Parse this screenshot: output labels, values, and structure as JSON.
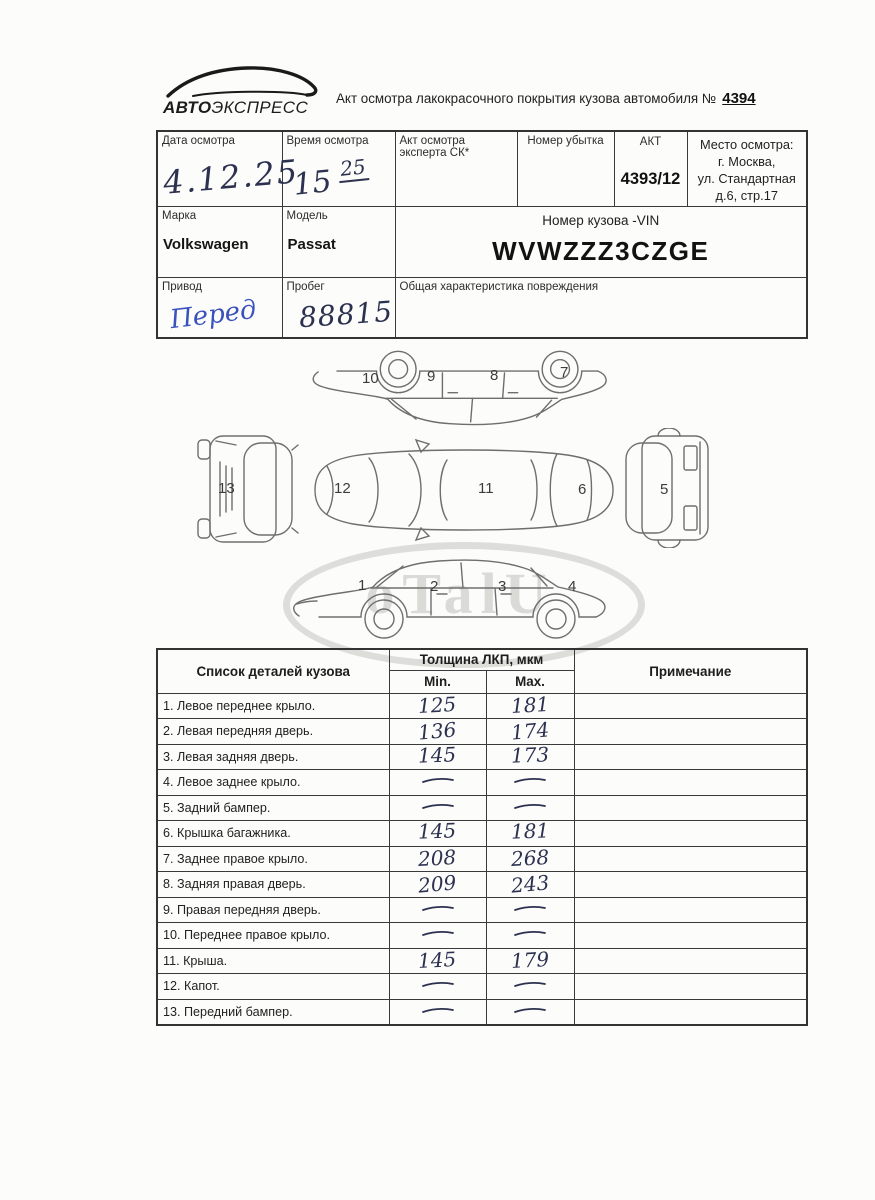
{
  "header": {
    "logo_bold": "АВТО",
    "logo_rest": "ЭКСПРЕСС",
    "title": "Акт осмотра лакокрасочного покрытия кузова автомобиля №",
    "act_number": "4394"
  },
  "info_table": {
    "date_label": "Дата осмотра",
    "date_value": "4.12.25",
    "time_label": "Время осмотра",
    "time_main": "15",
    "time_sup": "25",
    "expert_act_label": "Акт осмотра эксперта СК*",
    "loss_label": "Номер убытка",
    "akt_label": "АКТ",
    "akt_value": "4393/12",
    "place_label": "Место осмотра:",
    "place_line1": "г. Москва,",
    "place_line2": "ул. Стандартная",
    "place_line3": "д.6, стр.17",
    "brand_label": "Марка",
    "brand_value": "Volkswagen",
    "model_label": "Модель",
    "model_value": "Passat",
    "vin_label": "Номер кузова -VIN",
    "vin_value": "WVWZZZ3CZGE",
    "drive_label": "Привод",
    "drive_value": "Перед",
    "mileage_label": "Пробег",
    "mileage_value": "88815",
    "damage_label": "Общая характеристика повреждения"
  },
  "diagram": {
    "inverted_labels": [
      "10",
      "9",
      "8",
      "7"
    ],
    "front_label": "13",
    "plan_labels": [
      "12",
      "11",
      "6"
    ],
    "rear_label": "5",
    "side_labels": [
      "1",
      "2",
      "3",
      "4"
    ],
    "watermark_text": "oTalU"
  },
  "parts_table": {
    "col_parts": "Список деталей кузова",
    "col_thickness": "Толщина ЛКП, мкм",
    "col_min": "Min.",
    "col_max": "Max.",
    "col_note": "Примечание",
    "rows": [
      {
        "name": "1. Левое переднее крыло.",
        "min": "125",
        "max": "181",
        "note": ""
      },
      {
        "name": "2. Левая передняя дверь.",
        "min": "136",
        "max": "174",
        "note": ""
      },
      {
        "name": "3. Левая задняя дверь.",
        "min": "145",
        "max": "173",
        "note": ""
      },
      {
        "name": "4. Левое заднее крыло.",
        "min": "—",
        "max": "—",
        "note": ""
      },
      {
        "name": "5. Задний бампер.",
        "min": "—",
        "max": "—",
        "note": ""
      },
      {
        "name": "6. Крышка багажника.",
        "min": "145",
        "max": "181",
        "note": ""
      },
      {
        "name": "7. Заднее правое крыло.",
        "min": "208",
        "max": "268",
        "note": ""
      },
      {
        "name": "8. Задняя правая дверь.",
        "min": "209",
        "max": "243",
        "note": ""
      },
      {
        "name": "9. Правая передняя дверь.",
        "min": "—",
        "max": "—",
        "note": ""
      },
      {
        "name": "10. Переднее правое крыло.",
        "min": "—",
        "max": "—",
        "note": ""
      },
      {
        "name": "11. Крыша.",
        "min": "145",
        "max": "179",
        "note": ""
      },
      {
        "name": "12. Капот.",
        "min": "—",
        "max": "—",
        "note": ""
      },
      {
        "name": "13. Передний бампер.",
        "min": "—",
        "max": "—",
        "note": ""
      }
    ]
  },
  "colors": {
    "ink": "#2c3150",
    "ink_blue": "#3a52bd",
    "border": "#3a3a3a",
    "paper": "#fcfcfa",
    "diagram_stroke": "#6e6e6e"
  }
}
